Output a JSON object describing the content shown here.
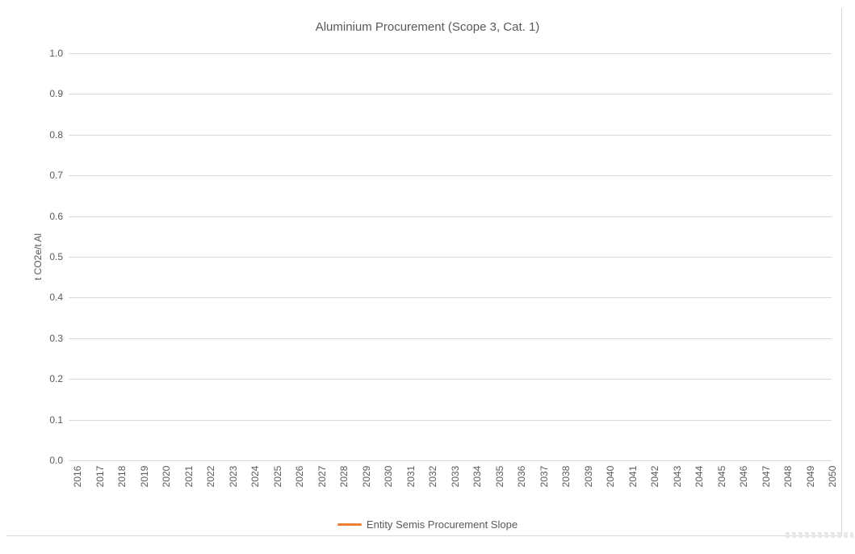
{
  "chart_data": {
    "type": "line",
    "title": "Aluminium Procurement (Scope 3, Cat. 1)",
    "xlabel": "",
    "ylabel": "t CO2e/t Al",
    "ylim": [
      0.0,
      1.0
    ],
    "ytick_interval": 0.1,
    "yticks": [
      "0.0",
      "0.1",
      "0.2",
      "0.3",
      "0.4",
      "0.5",
      "0.6",
      "0.7",
      "0.8",
      "0.9",
      "1.0"
    ],
    "categories": [
      "2016",
      "2017",
      "2018",
      "2019",
      "2020",
      "2021",
      "2022",
      "2023",
      "2024",
      "2025",
      "2026",
      "2027",
      "2028",
      "2029",
      "2030",
      "2031",
      "2032",
      "2033",
      "2034",
      "2035",
      "2036",
      "2037",
      "2038",
      "2039",
      "2040",
      "2041",
      "2042",
      "2043",
      "2044",
      "2045",
      "2046",
      "2047",
      "2048",
      "2049",
      "2050"
    ],
    "series": [
      {
        "name": "Entity Semis Procurement Slope",
        "color": "#ED7D31",
        "values": []
      }
    ],
    "grid": "horizontal",
    "legend_position": "bottom"
  },
  "colors": {
    "text": "#595959",
    "gridline": "#D9D9D9",
    "series_orange": "#ED7D31",
    "frame_border": "#D9D9D9",
    "background": "#FFFFFF"
  }
}
